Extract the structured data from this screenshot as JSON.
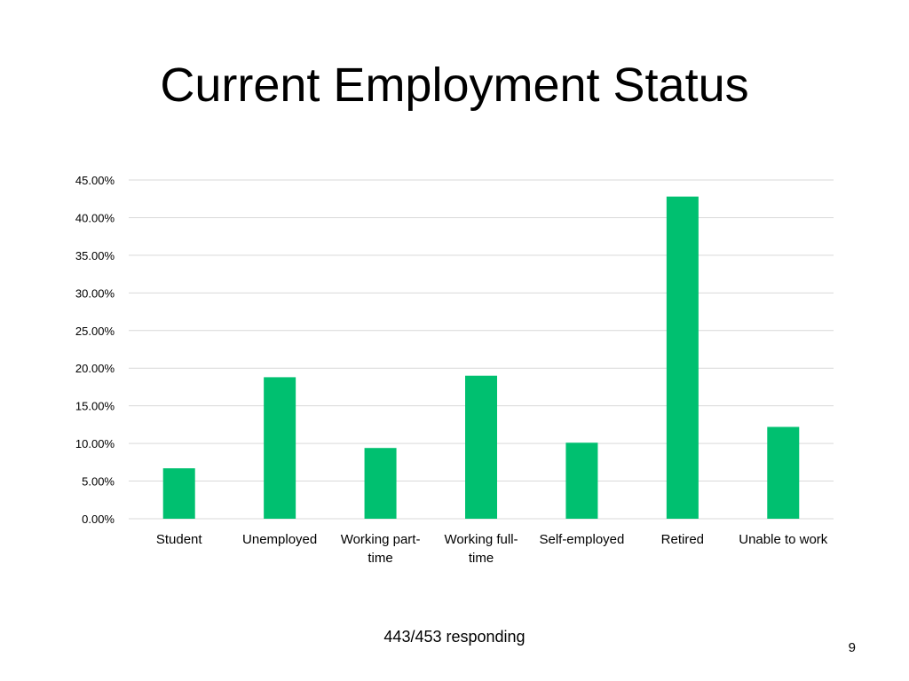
{
  "slide": {
    "title": "Current Employment Status",
    "footnote": "443/453 responding",
    "page_number": "9"
  },
  "colors": {
    "bar": "#00C070",
    "gridline": "#D9D9D9"
  },
  "chart_data": {
    "type": "bar",
    "title": "",
    "xlabel": "",
    "ylabel": "",
    "categories": [
      [
        "Student"
      ],
      [
        "Unemployed"
      ],
      [
        "Working part-",
        "time"
      ],
      [
        "Working full-",
        "time"
      ],
      [
        "Self-employed"
      ],
      [
        "Retired"
      ],
      [
        "Unable to work"
      ]
    ],
    "values": [
      6.7,
      18.8,
      9.4,
      19.0,
      10.1,
      42.8,
      12.2
    ],
    "ylim": [
      0,
      45
    ],
    "ytick_step": 5,
    "ytick_format": "percent_2dp",
    "grid": true,
    "legend": "none"
  }
}
